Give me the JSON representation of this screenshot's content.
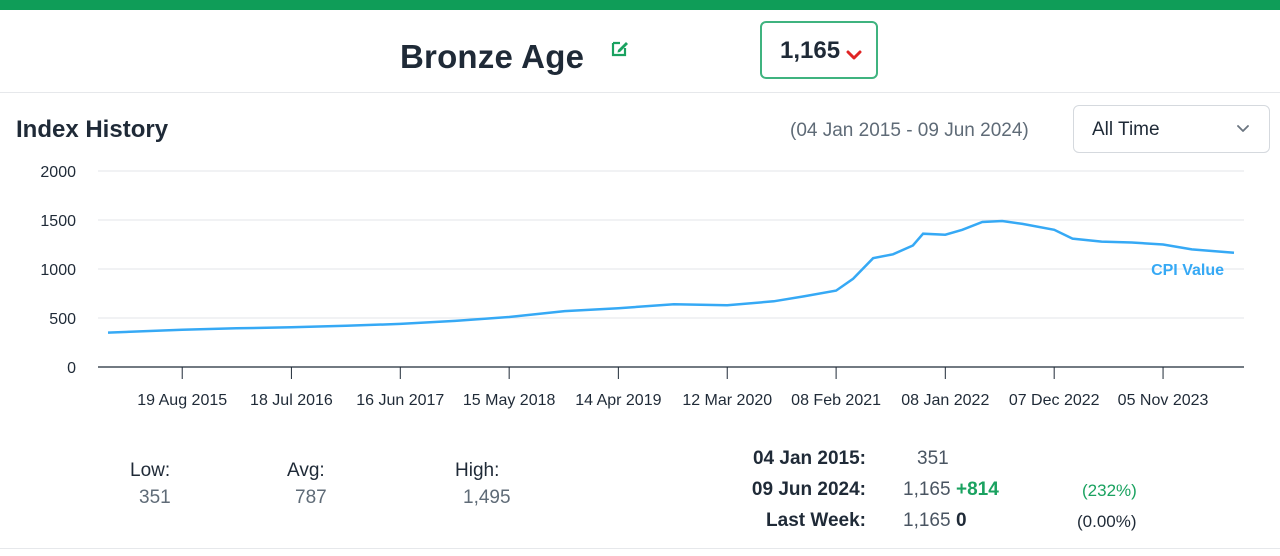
{
  "header": {
    "title": "Bronze Age",
    "current_value": "1,165",
    "accent_color": "#0f9d58"
  },
  "history": {
    "title": "Index History",
    "date_range": "(04 Jan 2015 - 09 Jun 2024)",
    "range_select": "All Time"
  },
  "chart_data": {
    "type": "line",
    "title": "",
    "xlabel": "",
    "ylabel": "",
    "x_range": [
      "2015-01-04",
      "2024-06-09"
    ],
    "ylim": [
      0,
      2000
    ],
    "y_ticks": [
      "0",
      "500",
      "1000",
      "1500",
      "2000"
    ],
    "x_ticks": [
      {
        "date": "2015-08-19",
        "label": "19 Aug 2015"
      },
      {
        "date": "2016-07-18",
        "label": "18 Jul 2016"
      },
      {
        "date": "2017-06-16",
        "label": "16 Jun 2017"
      },
      {
        "date": "2018-05-15",
        "label": "15 May 2018"
      },
      {
        "date": "2019-04-14",
        "label": "14 Apr 2019"
      },
      {
        "date": "2020-03-12",
        "label": "12 Mar 2020"
      },
      {
        "date": "2021-02-08",
        "label": "08 Feb 2021"
      },
      {
        "date": "2022-01-08",
        "label": "08 Jan 2022"
      },
      {
        "date": "2022-12-07",
        "label": "07 Dec 2022"
      },
      {
        "date": "2023-11-05",
        "label": "05 Nov 2023"
      }
    ],
    "grid": true,
    "series": [
      {
        "name": "CPI Value",
        "color": "#36a9f5",
        "points": [
          [
            "2015-01-04",
            351
          ],
          [
            "2015-08-19",
            380
          ],
          [
            "2016-02-01",
            395
          ],
          [
            "2016-07-18",
            405
          ],
          [
            "2017-01-01",
            420
          ],
          [
            "2017-06-16",
            440
          ],
          [
            "2017-12-01",
            470
          ],
          [
            "2018-05-15",
            510
          ],
          [
            "2018-11-01",
            570
          ],
          [
            "2019-04-14",
            600
          ],
          [
            "2019-10-01",
            640
          ],
          [
            "2020-03-12",
            630
          ],
          [
            "2020-08-01",
            670
          ],
          [
            "2020-11-01",
            720
          ],
          [
            "2021-02-08",
            780
          ],
          [
            "2021-04-01",
            900
          ],
          [
            "2021-06-01",
            1110
          ],
          [
            "2021-08-01",
            1150
          ],
          [
            "2021-10-01",
            1240
          ],
          [
            "2021-11-01",
            1360
          ],
          [
            "2022-01-08",
            1350
          ],
          [
            "2022-03-01",
            1400
          ],
          [
            "2022-05-01",
            1480
          ],
          [
            "2022-07-01",
            1490
          ],
          [
            "2022-09-01",
            1460
          ],
          [
            "2022-12-07",
            1400
          ],
          [
            "2023-02-01",
            1310
          ],
          [
            "2023-05-01",
            1280
          ],
          [
            "2023-08-01",
            1270
          ],
          [
            "2023-11-05",
            1250
          ],
          [
            "2024-02-01",
            1200
          ],
          [
            "2024-06-09",
            1165
          ]
        ]
      }
    ],
    "legend": "inline-right"
  },
  "stats": {
    "low_label": "Low:",
    "low": "351",
    "avg_label": "Avg:",
    "avg": "787",
    "high_label": "High:",
    "high": "1,495"
  },
  "changes": [
    {
      "label": "04 Jan 2015:",
      "value": "351",
      "change": "",
      "pct": ""
    },
    {
      "label": "09 Jun 2024:",
      "value": "1,165",
      "change": "+814",
      "pct": "(232%)"
    },
    {
      "label": "Last Week:",
      "value": "1,165",
      "change": "0",
      "pct": "(0.00%)"
    }
  ]
}
